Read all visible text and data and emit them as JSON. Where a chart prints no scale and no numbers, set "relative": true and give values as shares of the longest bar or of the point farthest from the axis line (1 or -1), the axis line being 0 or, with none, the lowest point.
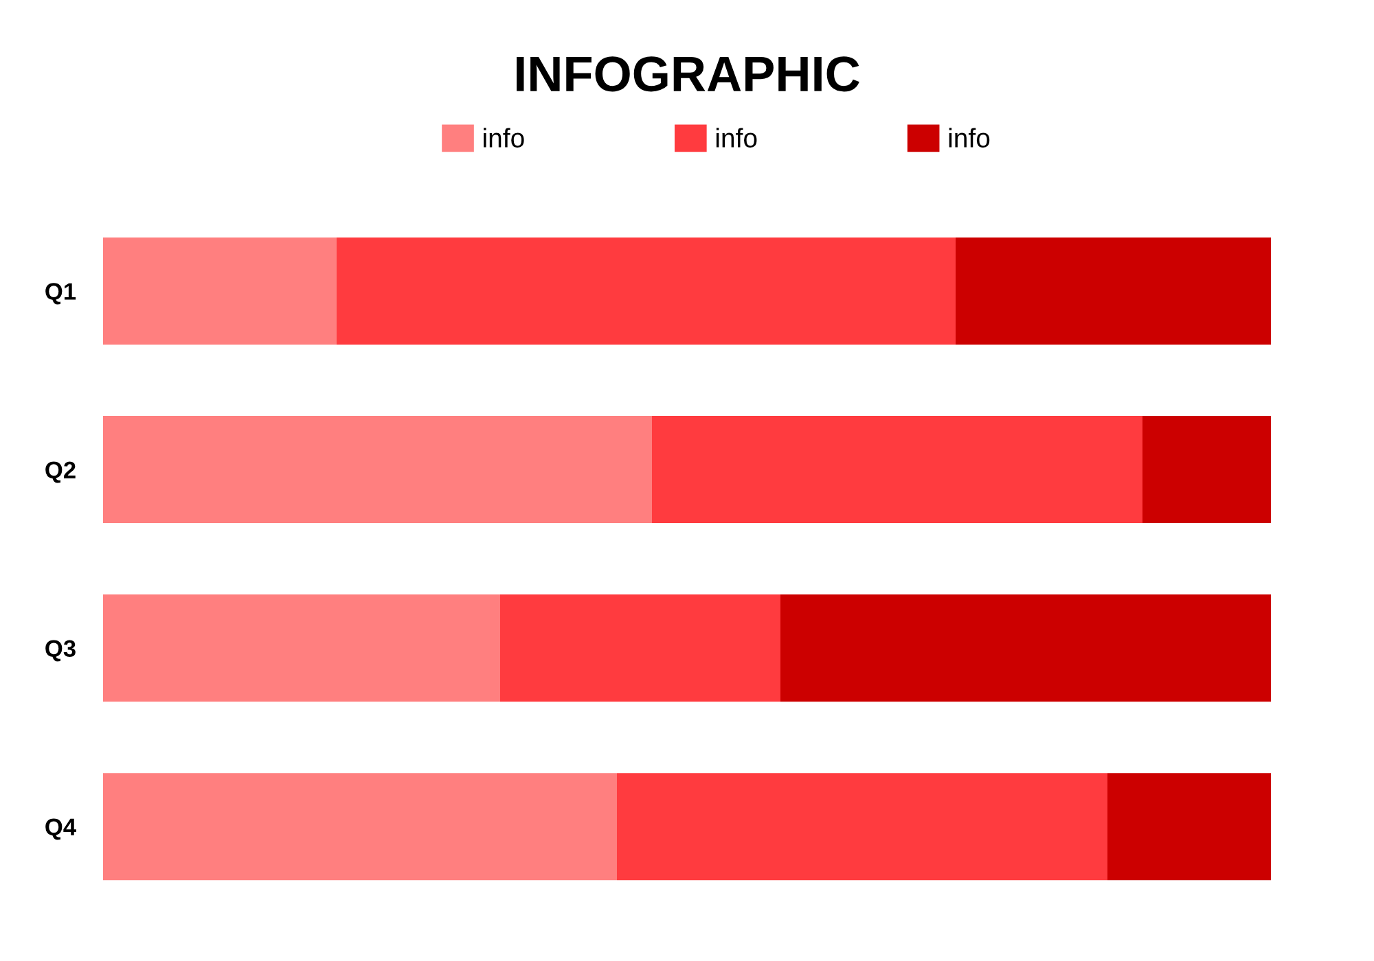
{
  "chart_data": {
    "type": "bar",
    "orientation": "horizontal",
    "stacked": true,
    "relative": true,
    "title": "INFOGRAPHIC",
    "categories": [
      "Q1",
      "Q2",
      "Q3",
      "Q4"
    ],
    "series": [
      {
        "name": "info",
        "color": "#ff7f7f",
        "values": [
          0.2,
          0.47,
          0.34,
          0.44
        ]
      },
      {
        "name": "info",
        "color": "#ff3b3f",
        "values": [
          0.53,
          0.42,
          0.24,
          0.42
        ]
      },
      {
        "name": "info",
        "color": "#cc0000",
        "values": [
          0.27,
          0.11,
          0.42,
          0.14
        ]
      }
    ],
    "legend": "top"
  }
}
